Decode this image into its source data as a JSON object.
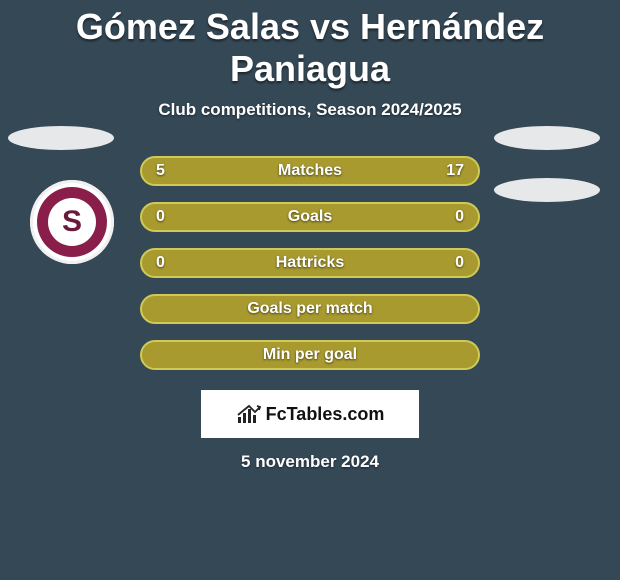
{
  "background_color": "#344856",
  "title": "Gómez Salas vs Hernández Paniagua",
  "title_fontsize": 36,
  "subtitle": "Club competitions, Season 2024/2025",
  "subtitle_fontsize": 17,
  "stats": {
    "pill_fill_color": "#a89a2f",
    "pill_border_color": "#cfca55",
    "pill_text_color": "#ffffff",
    "pill_width": 340,
    "pill_height": 30,
    "rows": [
      {
        "label": "Matches",
        "left": "5",
        "right": "17",
        "filled": true
      },
      {
        "label": "Goals",
        "left": "0",
        "right": "0",
        "filled": true
      },
      {
        "label": "Hattricks",
        "left": "0",
        "right": "0",
        "filled": true
      },
      {
        "label": "Goals per match",
        "left": "",
        "right": "",
        "filled": false
      },
      {
        "label": "Min per goal",
        "left": "",
        "right": "",
        "filled": false
      }
    ]
  },
  "side_ellipse_color": "#e7e8ea",
  "crest": {
    "outer_bg": "#ffffff",
    "ring_color": "#8a1e4a",
    "inner_bg": "#ffffff",
    "letter": "S",
    "letter_color": "#6a1a3a"
  },
  "branding": {
    "text": "FcTables.com",
    "box_border": "#ffffff",
    "box_bg": "#ffffff",
    "text_color": "#111111",
    "icon_color": "#222222"
  },
  "date": "5 november 2024",
  "date_fontsize": 17
}
